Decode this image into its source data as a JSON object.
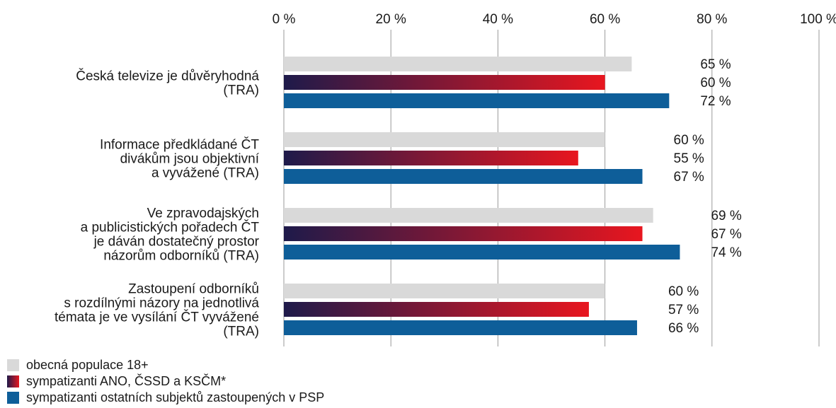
{
  "chart_data": {
    "type": "bar",
    "orientation": "horizontal",
    "xlim": [
      0,
      100
    ],
    "x_ticks": [
      0,
      20,
      40,
      60,
      80,
      100
    ],
    "x_tick_labels": [
      "0 %",
      "20 %",
      "40 %",
      "60 %",
      "80 %",
      "100 %"
    ],
    "categories": [
      [
        "Česká televize je důvěryhodná",
        "(TRA)"
      ],
      [
        "Informace předkládané ČT",
        "divákům jsou objektivní",
        "a vyvážené (TRA)"
      ],
      [
        "Ve zpravodajských",
        "a publicistických pořadech ČT",
        "je dáván dostatečný prostor",
        "názorům odborníků (TRA)"
      ],
      [
        "Zastoupení odborníků",
        "s rozdílnými názory na jednotlivá",
        "témata je ve vysílání ČT vyvážené",
        "(TRA)"
      ]
    ],
    "series": [
      {
        "name": "obecná populace 18+",
        "values": [
          65,
          60,
          69,
          60
        ],
        "labels": [
          "65 %",
          "60 %",
          "69 %",
          "60 %"
        ],
        "color": "#d9d9d9"
      },
      {
        "name": "sympatizanti ANO, ČSSD a KSČM*",
        "values": [
          60,
          55,
          67,
          57
        ],
        "labels": [
          "60 %",
          "55 %",
          "67 %",
          "57 %"
        ],
        "color_start": "#1e1a4a",
        "color_end": "#e8161f"
      },
      {
        "name": "sympatizanti ostatních subjektů zastoupených v PSP",
        "values": [
          72,
          67,
          74,
          66
        ],
        "labels": [
          "72 %",
          "67 %",
          "74 %",
          "66 %"
        ],
        "color": "#0e5e99"
      }
    ],
    "grid": true,
    "legend_position": "bottom-left"
  }
}
